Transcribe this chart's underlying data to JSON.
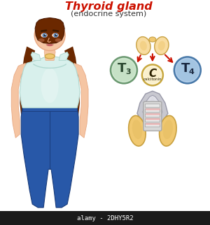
{
  "title": "Thyroid gland",
  "subtitle": "(endocrine system)",
  "title_color": "#cc1100",
  "subtitle_color": "#333333",
  "bg_color": "#ffffff",
  "skin_color": "#f5c5a3",
  "skin_dark": "#e8a882",
  "skin_shadow": "#f0b890",
  "hair_color": "#6b2800",
  "hair_dark": "#4a1800",
  "shirt_color": "#d8f0ec",
  "shirt_edge": "#b0d8d0",
  "shirt_shadow": "#c0e0d8",
  "jeans_color": "#2858a8",
  "jeans_dark": "#1a3c7a",
  "t3_color": "#b8d8b8",
  "t3_border": "#6a9870",
  "t3_inner": "#d0e8d0",
  "t4_color": "#90b8d8",
  "t4_border": "#4878a8",
  "t4_inner": "#b0cce8",
  "c_color": "#f8ecc0",
  "c_border": "#c8a840",
  "c_inner": "#fdf6dc",
  "arrow_color": "#cc1100",
  "thyroid_color": "#f0c870",
  "thyroid_dark": "#c8a040",
  "thyroid_light": "#f8dca0",
  "trachea_color": "#d8d8d8",
  "trachea_dark": "#a8a8a8",
  "trachea_ring": "#e8e8e8",
  "larynx_color": "#c8c8d0",
  "larynx_dark": "#9898a8",
  "pink_stripe": "#f0b0b0",
  "watermark": "alamy - 2DHY5R2",
  "watermark_bg": "#1a1a1a",
  "watermark_color": "#ffffff",
  "eye_color": "#6890b8",
  "eye_dark": "#3860a0",
  "lip_color": "#d07070"
}
